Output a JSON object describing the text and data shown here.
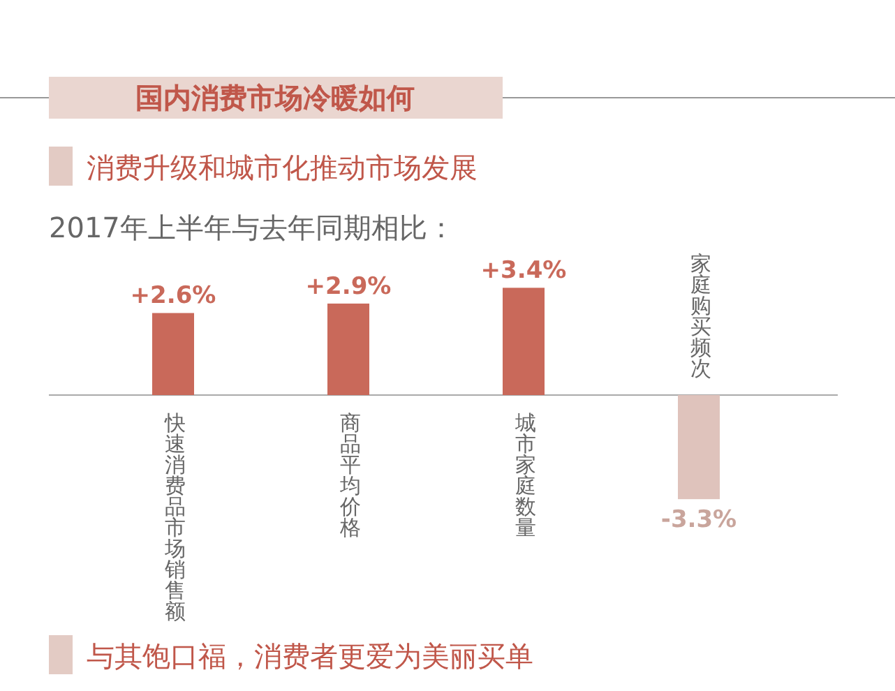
{
  "chart_data": {
    "type": "bar",
    "title": "国内消费市场冷暖如何",
    "subtitle": "消费升级和城市化推动市场发展",
    "annotations": [
      "2017年上半年与去年同期相比：",
      "与其饱口福，消费者更爱为美丽买单"
    ],
    "categories": [
      "快速消费品市场销售额",
      "商品平均价格",
      "城市家庭数量",
      "家庭购买频次"
    ],
    "values": [
      2.6,
      2.9,
      3.4,
      -3.3
    ],
    "colors": [
      "#c9695a",
      "#c9695a",
      "#c9695a",
      "#dfc3bc"
    ],
    "value_labels": [
      "+2.6%",
      "+2.9%",
      "+3.4%",
      "-3.3%"
    ]
  }
}
